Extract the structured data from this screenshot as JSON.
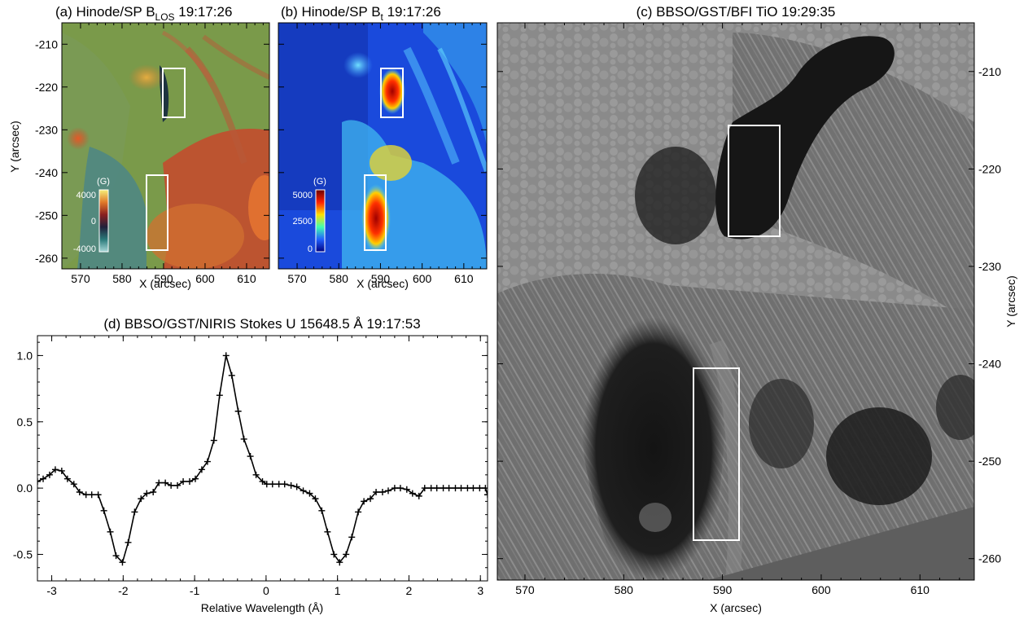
{
  "panels": {
    "a": {
      "title_pre": "(a) Hinode/SP B",
      "title_sub": "LOS",
      "title_post": " 19:17:26",
      "xlabel": "X (arcsec)",
      "ylabel": "Y (arcsec)",
      "xticks": [
        "570",
        "580",
        "590",
        "600",
        "610"
      ],
      "yticks": [
        "-210",
        "-220",
        "-230",
        "-240",
        "-250",
        "-260"
      ],
      "colorbar": {
        "unit": "(G)",
        "labels": [
          "4000",
          "0",
          "-4000"
        ],
        "colors": [
          "#f5f07a",
          "#e07a2a",
          "#8a2020",
          "#20203a",
          "#2a7a7a",
          "#a8d8d8"
        ]
      },
      "palette": {
        "field": "#7a9a4a",
        "positive": "#d24a2a",
        "negative": "#3a7a8a"
      }
    },
    "b": {
      "title_pre": "(b) Hinode/SP B",
      "title_sub": "t",
      "title_post": " 19:17:26",
      "xlabel": "X (arcsec)",
      "xticks": [
        "570",
        "580",
        "590",
        "600",
        "610"
      ],
      "colorbar": {
        "unit": "(G)",
        "labels": [
          "5000",
          "2500",
          "0"
        ],
        "colors": [
          "#6a0000",
          "#ff2000",
          "#ffe000",
          "#40ffb0",
          "#2060ff",
          "#000080"
        ]
      },
      "palette": {
        "field": "#1a4adc",
        "high": "#c81414",
        "mid": "#40c8f0"
      }
    },
    "c": {
      "title": "(c) BBSO/GST/BFI TiO 19:29:35",
      "xlabel": "X (arcsec)",
      "ylabel": "Y (arcsec)",
      "xticks": [
        "570",
        "580",
        "590",
        "600",
        "610"
      ],
      "yticks": [
        "-210",
        "-220",
        "-230",
        "-240",
        "-250",
        "-260"
      ],
      "palette": {
        "granulation": "#8e8e8e",
        "umbra": "#1a1a1a",
        "penumbra": "#6a6a6a",
        "nodata": "#5e5e5e"
      }
    },
    "d": {
      "title": "(d) BBSO/GST/NIRIS Stokes U 15648.5 Å 19:17:53",
      "xlabel": "Relative Wavelength (Å)",
      "xticks": [
        "-3",
        "-2",
        "-1",
        "0",
        "1",
        "2",
        "3"
      ],
      "yticks": [
        "1.0",
        "0.5",
        "0.0",
        "-0.5"
      ]
    }
  },
  "chart_data": [
    {
      "type": "line",
      "panel": "d",
      "title": "(d) BBSO/GST/NIRIS Stokes U 15648.5 Å 19:17:53",
      "xlabel": "Relative Wavelength (Å)",
      "ylabel": "",
      "xlim": [
        -3.2,
        3.1
      ],
      "ylim": [
        -0.7,
        1.15
      ],
      "x": [
        -3.2,
        -3.12,
        -3.03,
        -2.95,
        -2.86,
        -2.78,
        -2.69,
        -2.61,
        -2.52,
        -2.44,
        -2.35,
        -2.27,
        -2.18,
        -2.1,
        -2.01,
        -1.93,
        -1.84,
        -1.75,
        -1.67,
        -1.58,
        -1.5,
        -1.41,
        -1.33,
        -1.24,
        -1.16,
        -1.07,
        -0.99,
        -0.9,
        -0.82,
        -0.73,
        -0.65,
        -0.56,
        -0.48,
        -0.39,
        -0.31,
        -0.22,
        -0.14,
        -0.05,
        0.01,
        0.09,
        0.18,
        0.26,
        0.35,
        0.43,
        0.52,
        0.61,
        0.69,
        0.78,
        0.86,
        0.95,
        1.03,
        1.12,
        1.2,
        1.29,
        1.37,
        1.46,
        1.54,
        1.63,
        1.71,
        1.8,
        1.88,
        1.97,
        2.05,
        2.14,
        2.22,
        2.31,
        2.39,
        2.48,
        2.56,
        2.65,
        2.73,
        2.82,
        2.9,
        2.99,
        3.07,
        3.1
      ],
      "y": [
        0.05,
        0.07,
        0.1,
        0.14,
        0.13,
        0.07,
        0.03,
        -0.03,
        -0.05,
        -0.05,
        -0.05,
        -0.17,
        -0.33,
        -0.51,
        -0.56,
        -0.41,
        -0.18,
        -0.08,
        -0.04,
        -0.03,
        0.04,
        0.04,
        0.02,
        0.02,
        0.05,
        0.05,
        0.07,
        0.14,
        0.2,
        0.36,
        0.7,
        1.0,
        0.85,
        0.58,
        0.37,
        0.24,
        0.1,
        0.05,
        0.03,
        0.03,
        0.03,
        0.03,
        0.02,
        0.01,
        -0.02,
        -0.04,
        -0.08,
        -0.17,
        -0.33,
        -0.5,
        -0.56,
        -0.5,
        -0.37,
        -0.18,
        -0.1,
        -0.08,
        -0.03,
        -0.03,
        -0.02,
        0.0,
        0.0,
        -0.01,
        -0.04,
        -0.06,
        0.0,
        0.0,
        0.0,
        0.0,
        0.0,
        0.0,
        0.0,
        0.0,
        0.0,
        0.0,
        0.0,
        -0.05
      ]
    },
    {
      "type": "heatmap",
      "panel": "a",
      "title": "(a) Hinode/SP B_LOS 19:17:26",
      "xlabel": "X (arcsec)",
      "ylabel": "Y (arcsec)",
      "xlim": [
        570,
        615
      ],
      "ylim": [
        -262,
        -205
      ],
      "colorbar": {
        "unit": "G",
        "range": [
          -4000,
          4000
        ]
      },
      "boxes": [
        [
          593.5,
          -228,
          596.5,
          -217
        ],
        [
          589,
          -258,
          593,
          -241
        ]
      ]
    },
    {
      "type": "heatmap",
      "panel": "b",
      "title": "(b) Hinode/SP B_t 19:17:26",
      "xlabel": "X (arcsec)",
      "xlim": [
        570,
        615
      ],
      "ylim": [
        -262,
        -205
      ],
      "colorbar": {
        "unit": "G",
        "range": [
          0,
          5000
        ]
      },
      "boxes": [
        [
          593,
          -228,
          596,
          -217
        ],
        [
          589,
          -258,
          593,
          -241
        ]
      ]
    },
    {
      "type": "heatmap",
      "panel": "c",
      "title": "(c) BBSO/GST/BFI TiO 19:29:35",
      "xlabel": "X (arcsec)",
      "ylabel": "Y (arcsec)",
      "xlim": [
        567.5,
        615.5
      ],
      "ylim": [
        -262,
        -206
      ],
      "boxes": [
        [
          592.5,
          -228,
          597.5,
          -217
        ],
        [
          589,
          -258,
          593.5,
          -241
        ]
      ]
    }
  ]
}
